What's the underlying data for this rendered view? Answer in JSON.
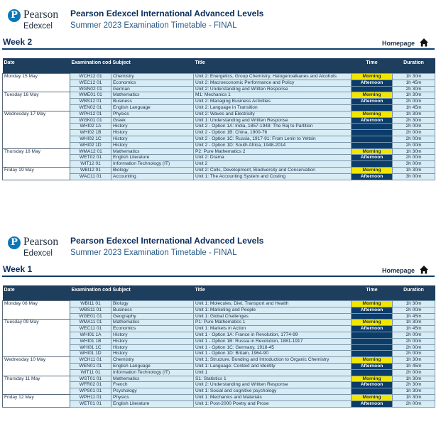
{
  "brand": {
    "name": "Pearson",
    "sub": "Edexcel",
    "logo_letter": "P"
  },
  "sections": [
    {
      "title": "Pearson Edexcel International Advanced Levels",
      "subtitle": "Summer 2023 Examination Timetable - FINAL",
      "week": "Week 2",
      "homepage": "Homepage",
      "headers": {
        "date": "Date",
        "code": "Examination code",
        "subject": "Subject",
        "title": "Title",
        "time": "Time",
        "duration": "Duration"
      },
      "days": [
        {
          "date": "Monday 15 May",
          "rows": [
            {
              "code": "WCH12 01",
              "subject": "Chemistry",
              "title": "Unit 2: Energetics, Group Chemistry, Halogenoalkanes and Alcohols",
              "time": "Morning",
              "duration": "1h 30m"
            },
            {
              "code": "WEC12 01",
              "subject": "Economics",
              "title": "Unit 2: Macroeconomic Performance and Policy",
              "time": "Afternoon",
              "duration": "1h 45m"
            },
            {
              "code": "WGN02 01",
              "subject": "German",
              "title": "Unit 2: Understanding and Written Response",
              "time": "",
              "duration": "2h 30m"
            }
          ]
        },
        {
          "date": "Tuesday 16 May",
          "rows": [
            {
              "code": "WME01 01",
              "subject": "Mathematics",
              "title": "M1: Mechanics 1",
              "time": "Morning",
              "duration": "1h 30m"
            },
            {
              "code": "WBS12 01",
              "subject": "Business",
              "title": "Unit 2: Managing Business Activities",
              "time": "Afternoon",
              "duration": "2h 00m"
            },
            {
              "code": "WEN02 01",
              "subject": "English Language",
              "title": "Unit 2: Language in Transition",
              "time": "",
              "duration": "1h 45m"
            }
          ]
        },
        {
          "date": "Wednesday 17 May",
          "rows": [
            {
              "code": "WPH12 01",
              "subject": "Physics",
              "title": "Unit 2: Waves and Electricity",
              "time": "Morning",
              "duration": "1h 30m"
            },
            {
              "code": "WGK01 01",
              "subject": "Greek",
              "title": "Unit 1: Understanding and Written Response",
              "time": "Afternoon",
              "duration": "2h 30m"
            },
            {
              "code": "WHI02 1A",
              "subject": "History",
              "title": "Unit 2 - Option 1A: India, 1857-1948: The Raj to Partition",
              "time": "",
              "duration": "2h 00m"
            },
            {
              "code": "WHI02 1B",
              "subject": "History",
              "title": "Unit 2 - Option 1B: China, 1900-76",
              "time": "",
              "duration": "2h 00m"
            },
            {
              "code": "WHI02 1C",
              "subject": "History",
              "title": "Unit 2 - Option 1C: Russia, 1917-91: From Lenin to Yeltsin",
              "time": "",
              "duration": "2h 00m"
            },
            {
              "code": "WHI02 1D",
              "subject": "History",
              "title": "Unit 2 - Option 1D: South Africa, 1948-2014",
              "time": "",
              "duration": "2h 00m"
            }
          ]
        },
        {
          "date": "Thursday 18 May",
          "rows": [
            {
              "code": "WMA12 01",
              "subject": "Mathematics",
              "title": "P2: Pure Mathematics 2",
              "time": "Morning",
              "duration": "1h 30m"
            },
            {
              "code": "WET02 01",
              "subject": "English Literature",
              "title": "Unit 2: Drama",
              "time": "Afternoon",
              "duration": "2h 00m"
            },
            {
              "code": "WIT12 01",
              "subject": "Information Technology (IT)",
              "title": "Unit 2",
              "time": "",
              "duration": "3h 00m"
            }
          ]
        },
        {
          "date": "Friday 19 May",
          "rows": [
            {
              "code": "WBI12 01",
              "subject": "Biology",
              "title": "Unit 2: Cells, Development, Biodiversity and Conservation",
              "time": "Morning",
              "duration": "1h 30m"
            },
            {
              "code": "WAC11 01",
              "subject": "Accounting",
              "title": "Unit 1: The Accounting System and Costing",
              "time": "Afternoon",
              "duration": "3h 00m"
            }
          ]
        }
      ]
    },
    {
      "title": "Pearson Edexcel International Advanced Levels",
      "subtitle": "Summer 2023 Examination Timetable - FINAL",
      "week": "Week 1",
      "homepage": "Homepage",
      "headers": {
        "date": "Date",
        "code": "Examination code",
        "subject": "Subject",
        "title": "Title",
        "time": "Time",
        "duration": "Duration"
      },
      "days": [
        {
          "date": "Monday 08 May",
          "rows": [
            {
              "code": "WBI11 01",
              "subject": "Biology",
              "title": "Unit 1: Molecules, Diet, Transport and Health",
              "time": "Morning",
              "duration": "1h 30m"
            },
            {
              "code": "WBS11 01",
              "subject": "Business",
              "title": "Unit 1: Marketing and People",
              "time": "Afternoon",
              "duration": "2h 00m"
            },
            {
              "code": "WGE01 01",
              "subject": "Geography",
              "title": "Unit 1: Global Challenges",
              "time": "",
              "duration": "1h 45m"
            }
          ]
        },
        {
          "date": "Tuesday 09 May",
          "rows": [
            {
              "code": "WMA11 01",
              "subject": "Mathematics",
              "title": "P1: Pure Mathematics 1",
              "time": "Morning",
              "duration": "1h 30m"
            },
            {
              "code": "WEC11 01",
              "subject": "Economics",
              "title": "Unit 1: Markets in Action",
              "time": "Afternoon",
              "duration": "1h 45m"
            },
            {
              "code": "WHI01 1A",
              "subject": "History",
              "title": "Unit 1 - Option 1A: France in Revolution, 1774-99",
              "time": "",
              "duration": "2h 00m"
            },
            {
              "code": "WHI01 1B",
              "subject": "History",
              "title": "Unit 1 - Option 1B: Russia in Revolution, 1881-1917",
              "time": "",
              "duration": "2h 00m"
            },
            {
              "code": "WHI01 1C",
              "subject": "History",
              "title": "Unit 1 - Option 1C: Germany, 1918-45",
              "time": "",
              "duration": "2h 00m"
            },
            {
              "code": "WHI01 1D",
              "subject": "History",
              "title": "Unit 1 - Option 1D: Britain, 1964-90",
              "time": "",
              "duration": "2h 00m"
            }
          ]
        },
        {
          "date": "Wednesday 10 May",
          "rows": [
            {
              "code": "WCH11 01",
              "subject": "Chemistry",
              "title": "Unit 1: Structure, Bonding and Introduction to Organic Chemistry",
              "time": "Morning",
              "duration": "1h 30m"
            },
            {
              "code": "WEN01 01",
              "subject": "English Language",
              "title": "Unit 1: Language: Context and Identity",
              "time": "Afternoon",
              "duration": "1h 45m"
            },
            {
              "code": "WIT11 01",
              "subject": "Information Technology (IT)",
              "title": "Unit 1",
              "time": "",
              "duration": "2h 00m"
            }
          ]
        },
        {
          "date": "Thursday 11 May",
          "rows": [
            {
              "code": "WST01 01",
              "subject": "Mathematics",
              "title": "S1: Statistics 1",
              "time": "Morning",
              "duration": "1h 30m"
            },
            {
              "code": "WFR02 01",
              "subject": "French",
              "title": "Unit 2: Understanding and Written Response",
              "time": "Afternoon",
              "duration": "2h 30m"
            },
            {
              "code": "WPS01 01",
              "subject": "Psychology",
              "title": "Unit 1: Social and cognitive psychology",
              "time": "",
              "duration": "1h 30m"
            }
          ]
        },
        {
          "date": "Friday 12 May",
          "rows": [
            {
              "code": "WPH11 01",
              "subject": "Physics",
              "title": "Unit 1: Mechanics and Materials",
              "time": "Morning",
              "duration": "1h 30m"
            },
            {
              "code": "WET01 01",
              "subject": "English Literature",
              "title": "Unit 1: Post-2000 Poetry and Prose",
              "time": "Afternoon",
              "duration": "2h 00m"
            }
          ]
        }
      ]
    }
  ]
}
